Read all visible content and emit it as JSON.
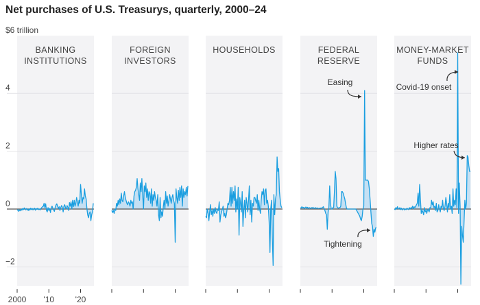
{
  "chart_data": {
    "type": "area",
    "title": "Net purchases of U.S. Treasurys, quarterly, 2000–24",
    "ylabel": "$6 trillion",
    "ylim": [
      -2.67,
      6
    ],
    "yticks": [
      {
        "v": 6,
        "label": "$6 trillion"
      },
      {
        "v": 4,
        "label": "4"
      },
      {
        "v": 2,
        "label": "2"
      },
      {
        "v": 0,
        "label": "0"
      },
      {
        "v": -2,
        "label": "−2"
      }
    ],
    "xstart": 2000,
    "xstep": 0.25,
    "xticks": [
      {
        "v": 2000,
        "label": "2000"
      },
      {
        "v": 2010,
        "label": "'10"
      },
      {
        "v": 2020,
        "label": "'20"
      }
    ],
    "grid": true,
    "colors": {
      "line": "#1a9ee0",
      "fill": "#bcdcf2",
      "panel": "#f3f3f5",
      "zero": "#555555",
      "grid": "#e2e2e6"
    },
    "panels": [
      {
        "title": [
          "BANKING",
          "INSTITUTIONS"
        ],
        "values": [
          -0.05,
          -0.02,
          -0.08,
          -0.03,
          -0.06,
          0.0,
          -0.04,
          0.02,
          -0.02,
          0.04,
          0.01,
          -0.03,
          0.02,
          -0.02,
          -0.05,
          0.01,
          -0.04,
          0.03,
          -0.02,
          0.02,
          -0.03,
          0.01,
          0.03,
          -0.04,
          0.02,
          -0.01,
          0.03,
          -0.02,
          0.0,
          -0.03,
          0.02,
          0.05,
          0.08,
          0.1,
          0.2,
          0.05,
          0.18,
          -0.05,
          -0.1,
          0.05,
          -0.05,
          0.02,
          -0.12,
          0.05,
          0.1,
          0.04,
          -0.03,
          -0.08,
          0.06,
          0.14,
          0.18,
          0.1,
          0.02,
          0.08,
          -0.05,
          0.05,
          0.12,
          0.07,
          -0.1,
          0.1,
          0.15,
          0.05,
          0.0,
          0.12,
          0.06,
          -0.05,
          0.22,
          0.1,
          0.25,
          0.0,
          0.3,
          0.08,
          0.3,
          0.1,
          0.2,
          0.4,
          0.25,
          0.1,
          0.3,
          0.2,
          0.85,
          0.5,
          0.2,
          0.4,
          0.35,
          0.7,
          0.45,
          0.35,
          0.0,
          -0.2,
          -0.3,
          -0.15,
          -0.1,
          -0.4,
          -0.2,
          -0.1,
          0.2
        ],
        "annotations": []
      },
      {
        "title": [
          "FOREIGN",
          "INVESTORS"
        ],
        "values": [
          -0.05,
          -0.12,
          -0.05,
          -0.15,
          0.0,
          -0.05,
          0.2,
          0.1,
          0.3,
          0.15,
          0.35,
          0.2,
          0.55,
          0.3,
          0.25,
          0.45,
          0.6,
          0.4,
          0.3,
          0.2,
          0.15,
          0.25,
          0.2,
          0.1,
          0.3,
          0.2,
          0.25,
          0.0,
          0.45,
          0.6,
          0.65,
          0.75,
          1.05,
          0.7,
          0.5,
          0.3,
          0.9,
          0.6,
          1.05,
          0.5,
          0.0,
          0.8,
          0.6,
          0.9,
          0.4,
          0.7,
          0.3,
          0.6,
          0.55,
          0.2,
          0.7,
          0.1,
          0.5,
          0.3,
          0.6,
          0.4,
          0.3,
          0.1,
          0.5,
          -0.2,
          -0.4,
          0.4,
          -0.3,
          -0.1,
          -0.25,
          0.1,
          0.3,
          0.0,
          0.6,
          0.2,
          0.45,
          0.1,
          0.3,
          0.5,
          0.35,
          0.2,
          0.4,
          0.5,
          0.3,
          0.2,
          -1.15,
          0.7,
          0.4,
          0.2,
          0.65,
          0.3,
          0.75,
          0.4,
          0.8,
          0.1,
          0.7,
          0.4,
          0.6,
          0.5,
          0.75,
          0.45,
          0.8
        ],
        "annotations": []
      },
      {
        "title": [
          "HOUSEHOLDS"
        ],
        "values": [
          -0.25,
          -0.3,
          0.0,
          -0.15,
          -0.4,
          -0.1,
          0.15,
          -0.2,
          -0.05,
          -0.25,
          0.0,
          -0.15,
          0.05,
          -0.1,
          -0.15,
          0.0,
          -0.05,
          0.25,
          -0.45,
          -0.2,
          -0.1,
          0.0,
          0.1,
          -0.25,
          -0.15,
          -0.3,
          -0.2,
          0.0,
          0.2,
          0.15,
          0.3,
          0.75,
          0.1,
          0.75,
          0.2,
          0.6,
          0.3,
          0.8,
          -0.1,
          0.35,
          0.0,
          0.75,
          -0.9,
          0.4,
          0.2,
          -0.1,
          0.6,
          -0.6,
          0.0,
          0.3,
          -0.3,
          0.4,
          0.2,
          -0.1,
          0.3,
          0.8,
          -0.2,
          0.3,
          -0.45,
          0.2,
          0.1,
          0.4,
          0.4,
          0.3,
          0.2,
          0.5,
          -0.05,
          0.3,
          0.0,
          -0.15,
          0.3,
          0.6,
          0.5,
          0.7,
          0.15,
          0.65,
          0.7,
          0.2,
          0.3,
          0.1,
          -0.45,
          -1.5,
          0.0,
          0.3,
          -1.0,
          -1.95,
          0.5,
          -0.2,
          0.35,
          0.5,
          1.8,
          1.3,
          1.4,
          0.6,
          0.3,
          0.1,
          0.05
        ],
        "annotations": []
      },
      {
        "title": [
          "FEDERAL",
          "RESERVE"
        ],
        "values": [
          0.05,
          0.03,
          0.08,
          0.04,
          0.06,
          0.02,
          0.05,
          0.07,
          0.03,
          0.06,
          0.02,
          0.05,
          0.04,
          0.02,
          0.05,
          0.03,
          0.06,
          0.02,
          0.03,
          0.05,
          0.02,
          0.04,
          0.03,
          0.02,
          0.03,
          0.02,
          0.04,
          0.03,
          0.05,
          0.08,
          0.02,
          -0.05,
          -0.15,
          -0.2,
          -0.7,
          -0.1,
          0.05,
          0.8,
          0.2,
          0.0,
          0.0,
          0.05,
          0.05,
          0.6,
          1.3,
          1.05,
          0.1,
          0.05,
          0.03,
          0.05,
          0.05,
          0.1,
          0.6,
          0.6,
          0.55,
          0.45,
          0.35,
          0.2,
          0.05,
          0.0,
          0.0,
          0.0,
          0.0,
          0.0,
          0.0,
          0.0,
          0.0,
          0.0,
          0.0,
          0.0,
          0.0,
          -0.05,
          -0.1,
          -0.15,
          -0.2,
          -0.25,
          -0.35,
          -0.4,
          -0.25,
          0.0,
          0.1,
          4.1,
          1.0,
          1.0,
          1.0,
          1.0,
          0.95,
          0.7,
          0.3,
          -0.1,
          -0.5,
          -0.6,
          -0.95,
          -0.7,
          -0.8,
          -0.65,
          -0.65
        ],
        "annotations": [
          {
            "text": "Easing",
            "year": 2020.25,
            "value": 4.1
          },
          {
            "text": "Tightening",
            "year": 2023.25,
            "value": -0.75
          }
        ]
      },
      {
        "title": [
          "MONEY-MARKET",
          "FUNDS"
        ],
        "values": [
          0.0,
          -0.02,
          0.05,
          0.0,
          0.08,
          0.02,
          0.0,
          0.05,
          -0.02,
          0.03,
          -0.03,
          0.0,
          0.02,
          -0.03,
          0.0,
          -0.02,
          0.03,
          0.0,
          -0.02,
          0.05,
          0.0,
          0.05,
          0.02,
          0.1,
          0.0,
          0.08,
          0.05,
          0.1,
          0.15,
          0.2,
          0.55,
          0.1,
          0.85,
          0.3,
          -0.15,
          -0.05,
          -0.1,
          -0.2,
          0.05,
          -0.1,
          -0.05,
          -0.15,
          0.0,
          -0.05,
          -0.1,
          0.05,
          0.05,
          0.3,
          0.15,
          0.25,
          0.05,
          0.1,
          -0.05,
          0.2,
          -0.1,
          -0.05,
          0.15,
          0.0,
          -0.1,
          0.1,
          0.05,
          0.3,
          0.0,
          -0.05,
          0.1,
          0.4,
          0.2,
          -0.1,
          0.2,
          0.05,
          0.5,
          0.0,
          0.1,
          -0.15,
          0.7,
          0.1,
          0.3,
          0.15,
          0.7,
          0.05,
          5.4,
          -0.15,
          0.9,
          0.1,
          -2.6,
          -0.6,
          -0.9,
          -1.15,
          -0.4,
          0.3,
          0.0,
          0.2,
          1.85,
          1.8,
          1.5,
          1.3,
          1.3
        ],
        "annotations": [
          {
            "text": "Covid-19 onset",
            "year": 2020.0,
            "value": 5.4
          },
          {
            "text": "Higher rates",
            "year": 2023.0,
            "value": 1.85
          }
        ]
      }
    ]
  }
}
